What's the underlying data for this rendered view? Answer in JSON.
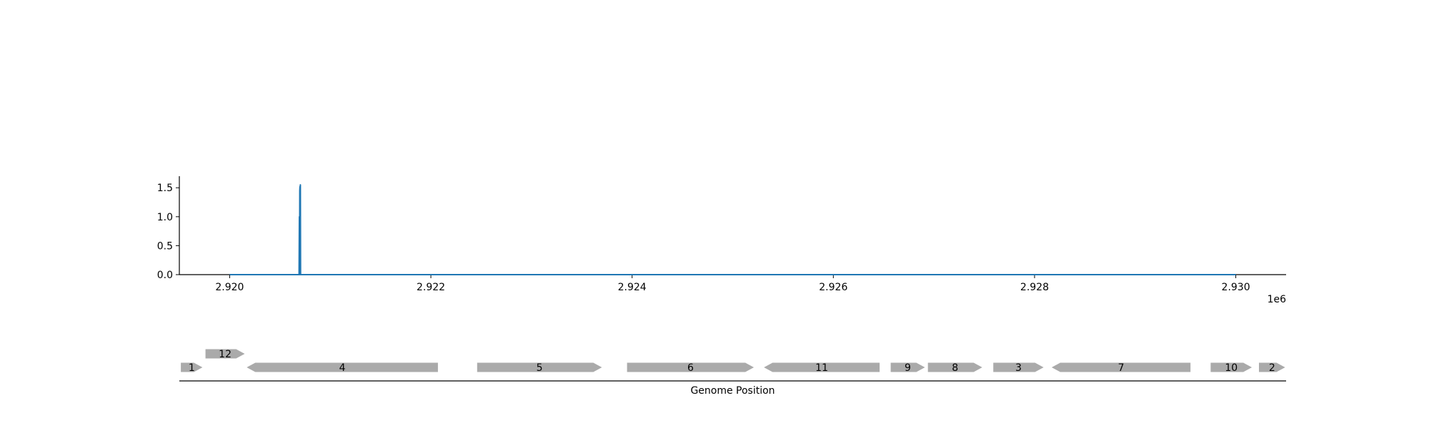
{
  "chart_data": [
    {
      "type": "line",
      "title": "",
      "xlabel": "",
      "ylabel": "",
      "x_offset_label": "1e6",
      "xlim": [
        2.9195,
        2.9305
      ],
      "ylim": [
        0,
        1.7
      ],
      "x_ticks": [
        2.92,
        2.922,
        2.924,
        2.926,
        2.928,
        2.93
      ],
      "x_tick_labels": [
        "2.920",
        "2.922",
        "2.924",
        "2.926",
        "2.928",
        "2.930"
      ],
      "y_ticks": [
        0.0,
        0.5,
        1.0,
        1.5
      ],
      "y_tick_labels": [
        "0.0",
        "0.5",
        "1.0",
        "1.5"
      ],
      "series_color": "#1f77b4",
      "series": [
        {
          "x": [
            2.92,
            2.92069,
            2.920693,
            2.920695,
            2.920697,
            2.920699,
            2.920701,
            2.920703,
            2.920705,
            2.93
          ],
          "y": [
            0,
            0,
            1.0,
            0,
            1.45,
            1.52,
            1.48,
            1.55,
            0,
            0
          ]
        }
      ]
    },
    {
      "type": "gene-track",
      "xlabel": "Genome Position",
      "xlim": [
        2.9195,
        2.9305
      ],
      "feature_color": "#aaaaaa",
      "features": [
        {
          "label": "1",
          "start": 2.919515,
          "end": 2.91973,
          "strand": "+",
          "row": 0
        },
        {
          "label": "12",
          "start": 2.91976,
          "end": 2.92015,
          "strand": "+",
          "row": 1
        },
        {
          "label": "4",
          "start": 2.92017,
          "end": 2.92207,
          "strand": "-",
          "row": 0
        },
        {
          "label": "5",
          "start": 2.92246,
          "end": 2.9237,
          "strand": "+",
          "row": 0
        },
        {
          "label": "6",
          "start": 2.92395,
          "end": 2.92521,
          "strand": "+",
          "row": 0
        },
        {
          "label": "11",
          "start": 2.92531,
          "end": 2.92646,
          "strand": "-",
          "row": 0
        },
        {
          "label": "9",
          "start": 2.92657,
          "end": 2.92691,
          "strand": "+",
          "row": 0
        },
        {
          "label": "8",
          "start": 2.92694,
          "end": 2.92748,
          "strand": "+",
          "row": 0
        },
        {
          "label": "3",
          "start": 2.92759,
          "end": 2.92809,
          "strand": "+",
          "row": 0
        },
        {
          "label": "7",
          "start": 2.92817,
          "end": 2.92955,
          "strand": "-",
          "row": 0
        },
        {
          "label": "10",
          "start": 2.92975,
          "end": 2.93016,
          "strand": "+",
          "row": 0
        },
        {
          "label": "2",
          "start": 2.93023,
          "end": 2.93049,
          "strand": "+",
          "row": 0
        }
      ]
    }
  ]
}
